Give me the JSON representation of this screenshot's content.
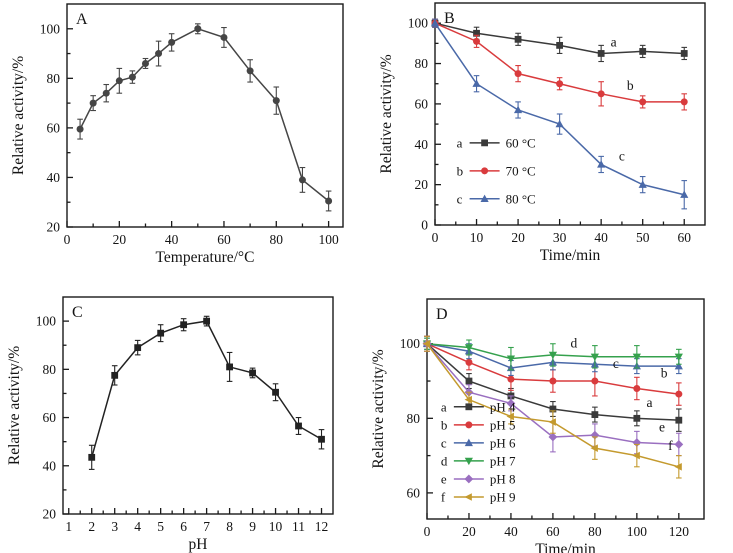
{
  "figure": {
    "background": "#ffffff",
    "axis_color": "#1a1a1a",
    "text_color": "#141414"
  },
  "chart_data": [
    {
      "type": "line",
      "panel_label": "A",
      "xlabel": "Temperature/°C",
      "ylabel": "Relative activity/%",
      "xlim": [
        0,
        105.5
      ],
      "ylim": [
        20,
        110
      ],
      "xticks": [
        0,
        20,
        40,
        60,
        80,
        100
      ],
      "yticks": [
        20,
        40,
        60,
        80,
        100
      ],
      "xticks_minor": [
        10,
        30,
        50,
        70,
        90
      ],
      "yticks_minor": [
        30,
        50,
        70,
        90
      ],
      "grid": false,
      "legend": null,
      "annotations": [],
      "series": [
        {
          "key": "",
          "name": "",
          "color": "#454545",
          "marker": "circle",
          "x": [
            5,
            10,
            15,
            20,
            25,
            30,
            35,
            40,
            50,
            60,
            70,
            80,
            90,
            100
          ],
          "values": [
            59.5,
            70,
            74,
            79,
            80.5,
            86,
            90,
            94.5,
            100,
            96.5,
            83,
            71,
            39,
            30.5
          ],
          "errors": [
            4,
            3,
            3.5,
            5,
            2.5,
            2,
            5,
            3.5,
            2,
            4,
            4.5,
            5.5,
            5,
            4
          ]
        }
      ]
    },
    {
      "type": "line",
      "panel_label": "B",
      "xlabel": "Time/min",
      "ylabel": "Relative activity/%",
      "xlim": [
        0,
        65
      ],
      "ylim": [
        0,
        110
      ],
      "xticks": [
        0,
        10,
        20,
        30,
        40,
        50,
        60
      ],
      "yticks": [
        0,
        20,
        40,
        60,
        80,
        100
      ],
      "xticks_minor": [
        5,
        15,
        25,
        35,
        45,
        55
      ],
      "yticks_minor": [
        10,
        30,
        50,
        70,
        90
      ],
      "grid": false,
      "legend": {
        "fx": 0.08,
        "fy": 0.63,
        "dy": 0.126
      },
      "annotations": [
        {
          "text": "a",
          "x": 43,
          "y": 88.5
        },
        {
          "text": "b",
          "x": 47,
          "y": 67
        },
        {
          "text": "c",
          "x": 45,
          "y": 32
        }
      ],
      "series": [
        {
          "key": "a",
          "name": "60 °C",
          "color": "#3a3a3a",
          "marker": "square",
          "x": [
            0,
            10,
            20,
            30,
            40,
            50,
            60
          ],
          "values": [
            100,
            95,
            92,
            89,
            85,
            86,
            85
          ],
          "errors": [
            2,
            3,
            3,
            4,
            4,
            3,
            3
          ]
        },
        {
          "key": "b",
          "name": "70 °C",
          "color": "#d93b3d",
          "marker": "circle",
          "x": [
            0,
            10,
            20,
            30,
            40,
            50,
            60
          ],
          "values": [
            100,
            91,
            75,
            70,
            65,
            61,
            61
          ],
          "errors": [
            2,
            3,
            4,
            3,
            6,
            3,
            4
          ]
        },
        {
          "key": "c",
          "name": "80 °C",
          "color": "#4a69a8",
          "marker": "triangle-up",
          "x": [
            0,
            10,
            20,
            30,
            40,
            50,
            60
          ],
          "values": [
            100,
            70,
            57,
            50,
            30,
            20,
            15
          ],
          "errors": [
            2,
            4,
            4,
            5,
            4,
            4,
            7
          ]
        }
      ]
    },
    {
      "type": "line",
      "panel_label": "C",
      "xlabel": "pH",
      "ylabel": "Relative activity/%",
      "xlim": [
        0.75,
        12.5
      ],
      "ylim": [
        20,
        110
      ],
      "xticks": [
        1,
        2,
        3,
        4,
        5,
        6,
        7,
        8,
        9,
        10,
        11,
        12
      ],
      "yticks": [
        20,
        40,
        60,
        80,
        100
      ],
      "xticks_minor": [
        1.5,
        2.5,
        3.5,
        4.5,
        5.5,
        6.5,
        7.5,
        8.5,
        9.5,
        10.5,
        11.5
      ],
      "yticks_minor": [
        30,
        50,
        70,
        90
      ],
      "grid": false,
      "legend": null,
      "annotations": [],
      "series": [
        {
          "key": "",
          "name": "",
          "color": "#222222",
          "marker": "square",
          "x": [
            2,
            3,
            4,
            5,
            6,
            7,
            8,
            9,
            10,
            11,
            12
          ],
          "values": [
            43.5,
            77.5,
            89,
            95,
            98.5,
            100,
            81,
            78.5,
            70.5,
            56.5,
            51
          ],
          "errors": [
            5,
            4,
            3,
            3.5,
            2.5,
            2,
            6,
            2,
            3.5,
            3.5,
            4
          ]
        }
      ]
    },
    {
      "type": "line",
      "panel_label": "D",
      "xlabel": "Time/min",
      "ylabel": "Relative activity/%",
      "xlim": [
        0,
        132
      ],
      "ylim": [
        53,
        112
      ],
      "xticks": [
        0,
        20,
        40,
        60,
        80,
        100,
        120
      ],
      "yticks": [
        60,
        80,
        100
      ],
      "xticks_minor": [
        10,
        30,
        50,
        70,
        90,
        110
      ],
      "yticks_minor": [
        70,
        90
      ],
      "grid": false,
      "legend": {
        "fx": 0.05,
        "fy": 0.49,
        "dy": 0.082
      },
      "annotations": [
        {
          "text": "d",
          "x": 70,
          "y": 99
        },
        {
          "text": "c",
          "x": 90,
          "y": 93.5
        },
        {
          "text": "b",
          "x": 113,
          "y": 91
        },
        {
          "text": "a",
          "x": 106,
          "y": 83
        },
        {
          "text": "e",
          "x": 112,
          "y": 76.5
        },
        {
          "text": "f",
          "x": 116,
          "y": 71.5
        }
      ],
      "series": [
        {
          "key": "a",
          "name": "pH 4",
          "color": "#3a3a3a",
          "marker": "square",
          "x": [
            0,
            20,
            40,
            60,
            80,
            100,
            120
          ],
          "values": [
            100,
            90,
            86,
            82.5,
            81,
            80,
            79.5
          ],
          "errors": [
            2,
            2,
            2,
            2,
            2,
            2,
            3
          ]
        },
        {
          "key": "b",
          "name": "pH 5",
          "color": "#d93b3d",
          "marker": "circle",
          "x": [
            0,
            20,
            40,
            60,
            80,
            100,
            120
          ],
          "values": [
            100,
            95,
            90.5,
            90,
            90,
            88,
            86.5
          ],
          "errors": [
            2,
            2,
            3,
            3,
            4,
            3,
            3
          ]
        },
        {
          "key": "c",
          "name": "pH 6",
          "color": "#4a69a8",
          "marker": "triangle-up",
          "x": [
            0,
            20,
            40,
            60,
            80,
            100,
            120
          ],
          "values": [
            100,
            98,
            93.5,
            95,
            94.5,
            94,
            94
          ],
          "errors": [
            1.5,
            2,
            2,
            2,
            2,
            2,
            2
          ]
        },
        {
          "key": "d",
          "name": "pH 7",
          "color": "#35a14d",
          "marker": "triangle-down",
          "x": [
            0,
            20,
            40,
            60,
            80,
            100,
            120
          ],
          "values": [
            100,
            99,
            96,
            97,
            96.5,
            96.5,
            96.5
          ],
          "errors": [
            1.5,
            2,
            3,
            3,
            3,
            3,
            2
          ]
        },
        {
          "key": "e",
          "name": "pH 8",
          "color": "#9a6fc0",
          "marker": "diamond",
          "x": [
            0,
            20,
            40,
            60,
            80,
            100,
            120
          ],
          "values": [
            100,
            87,
            84,
            75,
            75.5,
            73.5,
            73
          ],
          "errors": [
            2,
            2,
            2,
            4,
            3,
            3,
            3
          ]
        },
        {
          "key": "f",
          "name": "pH 9",
          "color": "#c49a2e",
          "marker": "triangle-left",
          "x": [
            0,
            20,
            40,
            60,
            80,
            100,
            120
          ],
          "values": [
            100,
            85,
            80.5,
            79,
            72,
            70,
            67
          ],
          "errors": [
            2,
            2,
            2,
            3,
            3,
            3,
            3
          ]
        }
      ]
    }
  ]
}
